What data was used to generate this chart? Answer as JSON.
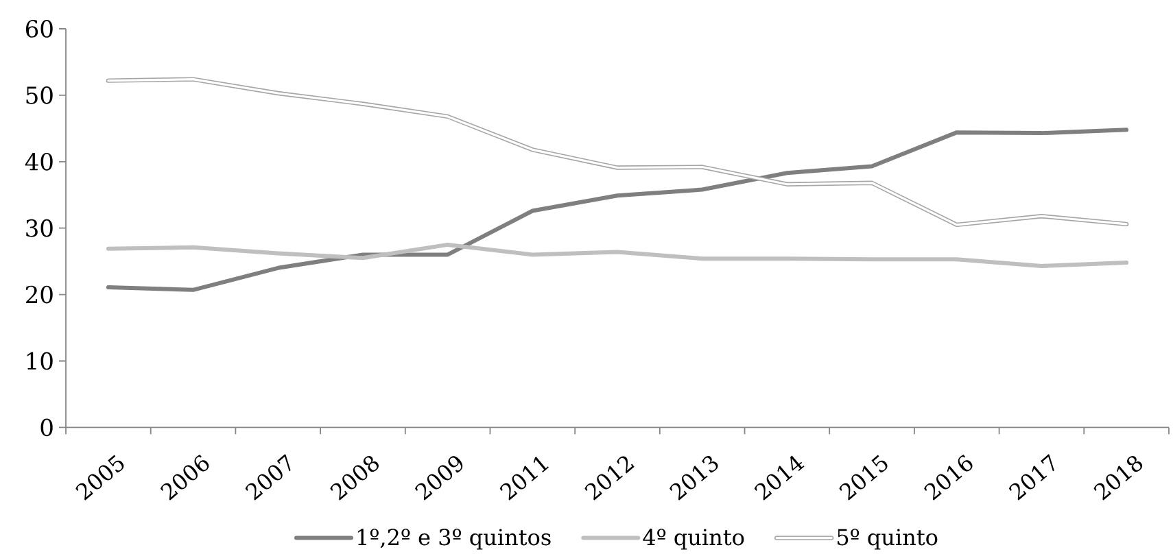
{
  "chart_data": {
    "type": "line",
    "categories": [
      "2005",
      "2006",
      "2007",
      "2008",
      "2009",
      "2011",
      "2012",
      "2013",
      "2014",
      "2015",
      "2016",
      "2017",
      "2018"
    ],
    "ylim": [
      0,
      60
    ],
    "yticks": [
      0,
      10,
      20,
      30,
      40,
      50,
      60
    ],
    "legend": "bottom",
    "line_style": "solid",
    "series": [
      {
        "name": "1º,2º e 3º quintos",
        "color": "#7f7f7f",
        "values": [
          21.1,
          20.7,
          24.0,
          26.0,
          26.0,
          32.6,
          34.9,
          35.8,
          38.3,
          39.3,
          44.4,
          44.3,
          44.8
        ]
      },
      {
        "name": "4º quinto",
        "color": "#bfbfbf",
        "values": [
          26.9,
          27.1,
          26.2,
          25.5,
          27.5,
          26.0,
          26.4,
          25.4,
          25.4,
          25.3,
          25.3,
          24.3,
          24.8
        ]
      },
      {
        "name": "5º quinto",
        "color": "#a6a6a6",
        "values": [
          52.2,
          52.4,
          50.3,
          48.7,
          46.8,
          41.8,
          39.1,
          39.2,
          36.6,
          36.8,
          30.5,
          31.8,
          30.6
        ]
      }
    ]
  }
}
